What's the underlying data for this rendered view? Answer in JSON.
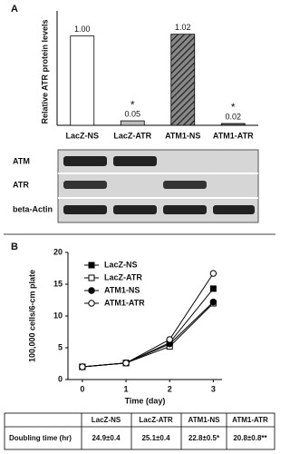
{
  "panel_labels": [
    "A",
    "B"
  ],
  "chart_data": [
    {
      "type": "bar",
      "ylabel": "Relative ATR protein levels",
      "categories": [
        "LacZ-NS",
        "LacZ-ATR",
        "ATM1-NS",
        "ATM1-ATR"
      ],
      "values": [
        1,
        0.05,
        1.02,
        0.02
      ],
      "value_labels": [
        "1.00",
        "0.05",
        "1.02",
        "0.02"
      ],
      "annotations": [
        null,
        "*",
        null,
        "*"
      ],
      "colors": [
        "#ffffff",
        "#bdbdbd",
        "#777777",
        "#666666"
      ],
      "patterns": [
        null,
        null,
        "hatch",
        null
      ],
      "ylim": [
        0,
        1.2
      ]
    },
    {
      "type": "line",
      "xlabel": "Time (day)",
      "ylabel": "100,000 cells/6-cm plate",
      "x": [
        0,
        1,
        2,
        3
      ],
      "series": [
        {
          "name": "LacZ-NS",
          "marker": "square",
          "filled": true,
          "values": [
            2,
            2.6,
            5.8,
            14.3
          ]
        },
        {
          "name": "LacZ-ATR",
          "marker": "square",
          "filled": false,
          "values": [
            2,
            2.6,
            5.2,
            12
          ]
        },
        {
          "name": "ATM1-NS",
          "marker": "circle",
          "filled": true,
          "values": [
            2,
            2.6,
            5.6,
            12.2
          ]
        },
        {
          "name": "ATM1-ATR",
          "marker": "circle",
          "filled": false,
          "values": [
            2,
            2.6,
            6.3,
            16.7
          ]
        }
      ],
      "color": "#000000",
      "xlim": [
        -0.33,
        3.2
      ],
      "xticks": [
        0,
        1,
        2,
        3
      ],
      "ylim": [
        0,
        20
      ],
      "yticks": [
        0,
        5,
        10,
        15,
        20
      ],
      "legend": "upper-left"
    }
  ],
  "blot": {
    "rows": [
      "ATM",
      "ATR",
      "beta-Actin"
    ]
  },
  "table": {
    "columns": [
      "LacZ-NS",
      "LacZ-ATR",
      "ATM1-NS",
      "ATM1-ATR"
    ],
    "rows": [
      [
        "Doubling time (hr)",
        "24.9±0.4",
        "25.1±0.4",
        "22.8±0.5*",
        "20.8±0.8**"
      ]
    ]
  }
}
